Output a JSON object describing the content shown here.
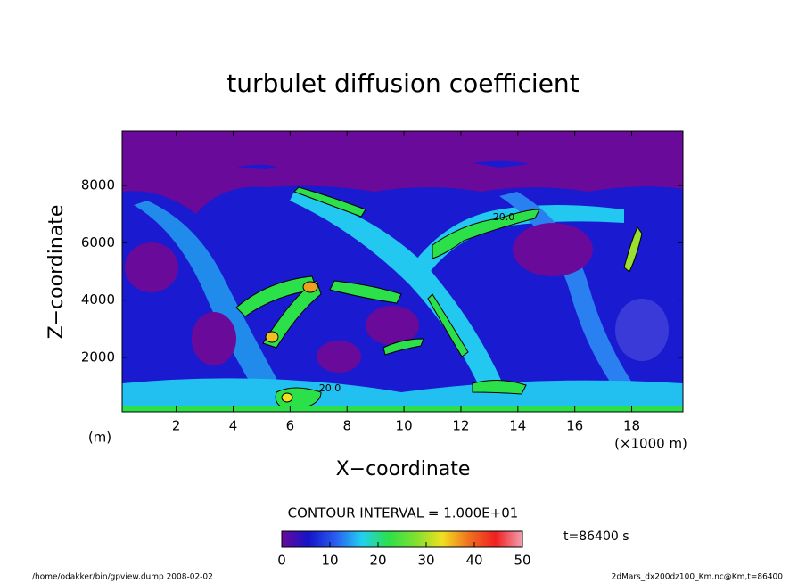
{
  "chart_data": {
    "type": "contour",
    "title": "turbulet diffusion coefficient",
    "xlabel": "X−coordinate",
    "ylabel": "Z−coordinate",
    "x_unit": "(×1000 m)",
    "y_unit": "(m)",
    "xlim": [
      0.1,
      19.8
    ],
    "ylim": [
      100,
      9900
    ],
    "xticks": [
      2,
      4,
      6,
      8,
      10,
      12,
      14,
      16,
      18
    ],
    "yticks": [
      2000,
      4000,
      6000,
      8000
    ],
    "contour_labels": [
      "20.0",
      "20.0"
    ],
    "contour_interval": "CONTOUR INTERVAL = 1.000E+01",
    "colorbar": {
      "lim": [
        0,
        50
      ],
      "ticks": [
        0,
        10,
        20,
        30,
        40,
        50
      ],
      "colors": [
        "#6a0a9a",
        "#1414c8",
        "#2a5cf0",
        "#22d0f0",
        "#2ce04a",
        "#7ee030",
        "#f0e020",
        "#f07020",
        "#f02020",
        "#f0a0b0"
      ]
    },
    "time_label": "t=86400 s",
    "footer_left": "/home/odakker/bin/gpview.dump  2008-02-02",
    "footer_right": "2dMars_dx200dz100_Km.nc@Km,t=86400"
  }
}
